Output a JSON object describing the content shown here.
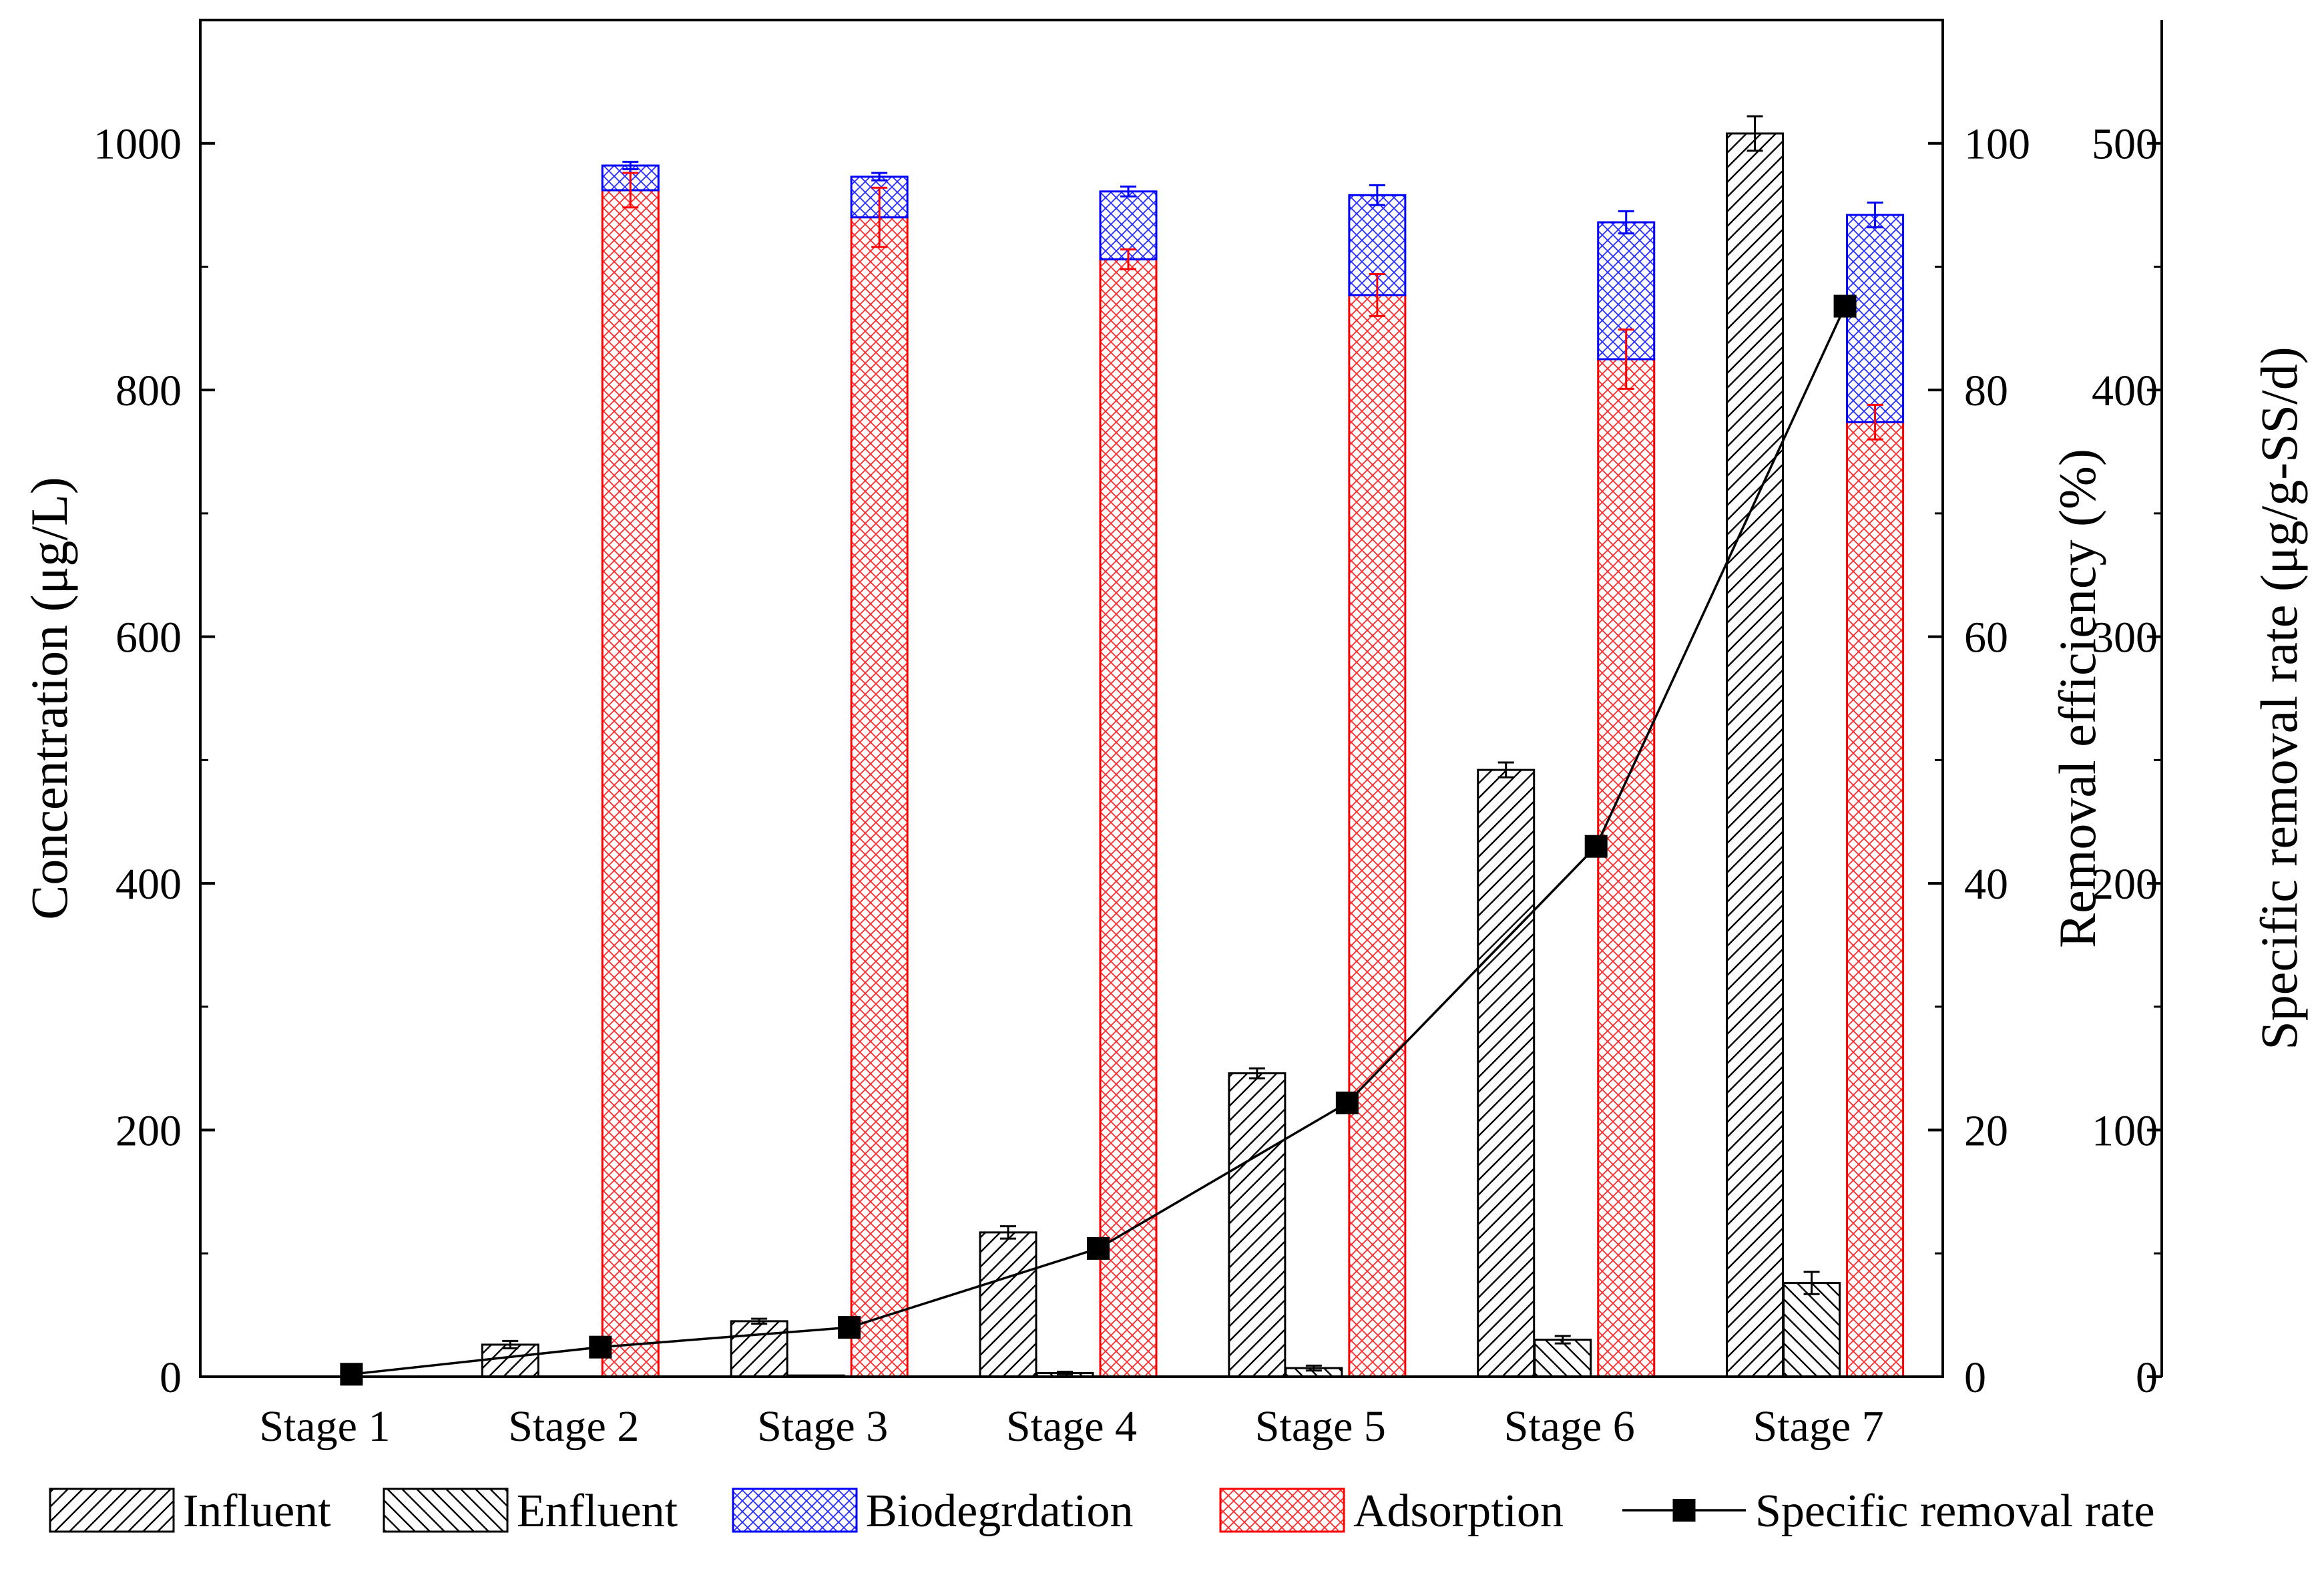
{
  "chart_data": {
    "type": "bar",
    "categories": [
      "Stage 1",
      "Stage 2",
      "Stage 3",
      "Stage 4",
      "Stage 5",
      "Stage 6",
      "Stage 7"
    ],
    "axes": {
      "left": {
        "label": "Concentration (μg/L)",
        "ylim": [
          0,
          1100
        ],
        "ticks": [
          0,
          200,
          400,
          600,
          800,
          1000
        ]
      },
      "right1": {
        "label": "Removal efficiency (%)",
        "ylim": [
          0,
          110
        ],
        "ticks": [
          0,
          20,
          40,
          60,
          80,
          100
        ]
      },
      "right2": {
        "label": "Specific removal rate (μg/g-SS/d)",
        "ylim": [
          0,
          550
        ],
        "ticks": [
          0,
          100,
          200,
          300,
          400,
          500
        ]
      }
    },
    "series": [
      {
        "name": "Influent",
        "axis": "left",
        "pattern": "diag-up",
        "values": [
          0,
          26,
          45,
          117,
          246,
          492,
          1008
        ],
        "errors": [
          0,
          3,
          2,
          5,
          4,
          6,
          14
        ]
      },
      {
        "name": "Enfluent",
        "axis": "left",
        "pattern": "diag-down",
        "values": [
          0,
          0,
          1,
          3,
          7,
          30,
          76
        ],
        "errors": [
          0,
          0,
          0,
          1,
          2,
          3,
          9
        ]
      },
      {
        "name": "Adsorption",
        "axis": "right1",
        "pattern": "cross-red",
        "color": "#ff0000",
        "values": [
          null,
          96.2,
          94.0,
          90.6,
          87.7,
          82.5,
          77.4
        ],
        "errors": [
          null,
          1.4,
          2.4,
          0.8,
          1.7,
          2.4,
          1.4
        ]
      },
      {
        "name": "Biodegrdation",
        "axis": "right1",
        "pattern": "cross-blue",
        "color": "#0000ff",
        "values": [
          null,
          2.0,
          3.3,
          5.5,
          8.1,
          11.1,
          16.8
        ],
        "errors": [
          null,
          0.3,
          0.3,
          0.4,
          0.8,
          0.9,
          1.0
        ]
      },
      {
        "name": "Specific removal rate",
        "axis": "right2",
        "type": "line",
        "marker": "square",
        "color": "#000000",
        "values": [
          1,
          12,
          20,
          52,
          111,
          215,
          434
        ]
      }
    ],
    "legend": [
      "Influent",
      "Enfluent",
      "Biodegrdation",
      "Adsorption",
      "Specific removal rate"
    ],
    "legend_position": "bottom"
  }
}
